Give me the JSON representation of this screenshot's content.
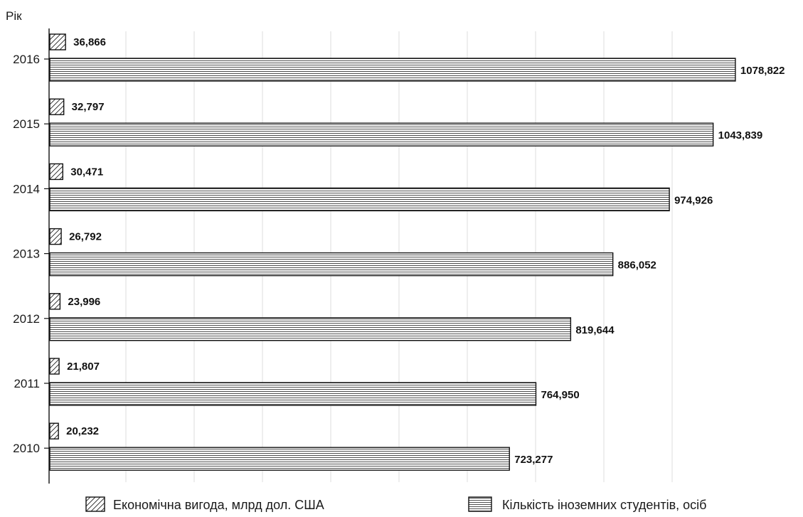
{
  "chart_data": {
    "type": "bar",
    "orientation": "horizontal",
    "ylabel": "Рік",
    "categories": [
      "2016",
      "2015",
      "2014",
      "2013",
      "2012",
      "2011",
      "2010"
    ],
    "series": [
      {
        "name": "Економічна вигода, млрд дол. США",
        "pattern": "diagonal-hatch",
        "values": [
          36.866,
          32.797,
          30.471,
          26.792,
          23.996,
          21.807,
          20.232
        ],
        "labels": [
          "36,866",
          "32,797",
          "30,471",
          "26,792",
          "23,996",
          "21,807",
          "20,232"
        ]
      },
      {
        "name": "Кількість іноземних студентів, осіб",
        "pattern": "horizontal-lines",
        "values": [
          1078.822,
          1043.839,
          974.926,
          886.052,
          819.644,
          764.95,
          723.277
        ],
        "labels": [
          "1078,822",
          "1043,839",
          "974,926",
          "886,052",
          "819,644",
          "764,950",
          "723,277"
        ]
      }
    ],
    "xlim": [
      0,
      1200
    ],
    "grid": false,
    "legend_position": "bottom"
  }
}
